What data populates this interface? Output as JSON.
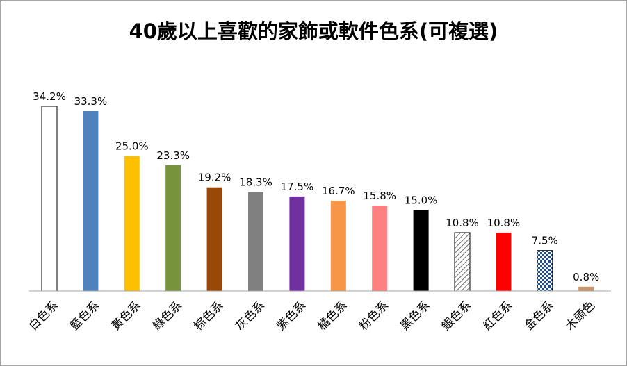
{
  "chart_data": {
    "type": "bar",
    "title": "40歲以上喜歡的家飾或軟件色系(可複選)",
    "xlabel": "",
    "ylabel": "",
    "ylim": [
      0,
      40
    ],
    "grid": false,
    "legend": "none",
    "categories": [
      "白色系",
      "藍色系",
      "黃色系",
      "綠色系",
      "棕色系",
      "灰色系",
      "紫色系",
      "橘色系",
      "粉色系",
      "黑色系",
      "銀色系",
      "紅色系",
      "金色系",
      "木頭色"
    ],
    "values": [
      34.2,
      33.3,
      25.0,
      23.3,
      19.2,
      18.3,
      17.5,
      16.7,
      15.8,
      15.0,
      10.8,
      10.8,
      7.5,
      0.8
    ],
    "value_labels": [
      "34.2%",
      "33.3%",
      "25.0%",
      "23.3%",
      "19.2%",
      "18.3%",
      "17.5%",
      "16.7%",
      "15.8%",
      "15.0%",
      "10.8%",
      "10.8%",
      "7.5%",
      "0.8%"
    ],
    "colors": [
      "#ffffff",
      "#4f81bd",
      "#ffc000",
      "#77933c",
      "#984807",
      "#808080",
      "#7030a0",
      "#f79646",
      "#ff8080",
      "#000000",
      "hatch",
      "#ff0000",
      "checker",
      "#c9966b"
    ]
  }
}
